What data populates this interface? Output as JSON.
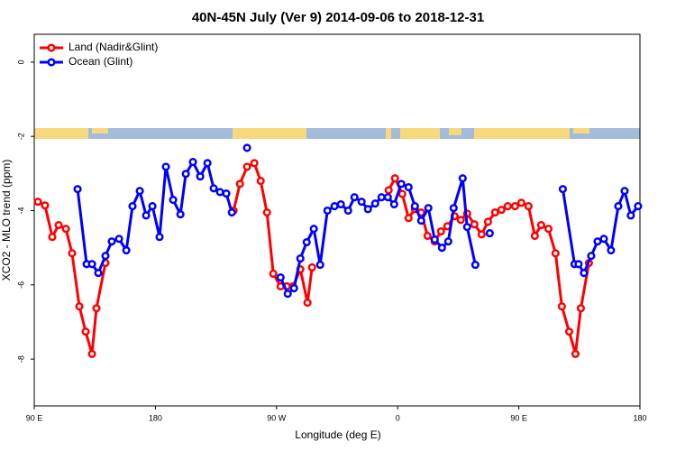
{
  "chart_data": {
    "type": "line",
    "title": "40N-45N July (Ver 9)   2014-09-06 to 2018-12-31",
    "x_label": "Longitude (deg E)",
    "y_label": "XCO2 - MLO trend (ppm)",
    "xlim": [
      90,
      540
    ],
    "xticks": [
      {
        "value": 90,
        "label": "90 E"
      },
      {
        "value": 180,
        "label": "180"
      },
      {
        "value": 270,
        "label": "90 W"
      },
      {
        "value": 360,
        "label": "0"
      },
      {
        "value": 450,
        "label": "90 E"
      },
      {
        "value": 540,
        "label": "180"
      }
    ],
    "ylim": [
      -9.26,
      0.75
    ],
    "yticks": [
      -8,
      -6,
      -4,
      -2,
      0
    ],
    "legend": "top-left",
    "series": [
      {
        "name": "Land (Nadir&Glint)",
        "color": "#ff0000",
        "x": [
          92.7,
          98,
          103.4,
          108.1,
          113.5,
          118.1,
          123.5,
          128.2,
          132.9,
          136.2,
          142.9,
          null,
          238.1,
          242.8,
          248.1,
          253.5,
          258.2,
          262.9,
          267.6,
          273,
          277.6,
          282.3,
          287.7,
          293,
          296.4,
          null,
          353.3,
          358,
          363.4,
          368.1,
          372.8,
          377.5,
          382.2,
          387.5,
          392.2,
          396.9,
          402.3,
          406.9,
          411.6,
          417,
          422.4,
          427.1,
          432.4,
          437.1,
          441.8,
          447.2,
          451.9,
          457.2,
          461.9,
          466.6,
          472,
          477.3,
          482,
          487.4,
          492.1,
          496.1,
          502.1
        ],
        "values": [
          -3.76,
          -3.86,
          -4.71,
          -4.39,
          -4.49,
          -5.15,
          -6.58,
          -7.26,
          -7.86,
          -6.63,
          -5.41,
          null,
          -4.0,
          -3.28,
          -2.82,
          -2.72,
          -3.2,
          -4.05,
          -5.7,
          -6.04,
          -6.04,
          -6.04,
          -5.58,
          -6.48,
          -5.53,
          null,
          -3.45,
          -3.13,
          -3.55,
          -4.2,
          -3.96,
          -4.05,
          -4.68,
          -4.83,
          -4.56,
          -4.42,
          -4.15,
          -4.25,
          -4.08,
          -4.37,
          -4.64,
          -4.3,
          -4.05,
          -3.98,
          -3.88,
          -3.88,
          -3.79,
          -3.88,
          -4.68,
          -4.39,
          -4.49,
          -5.15,
          -6.58,
          -7.26,
          -7.86,
          -6.63,
          -5.41
        ]
      },
      {
        "name": "Ocean (Glint)",
        "color": "#0000ff",
        "x": [
          122.2,
          128.9,
          132.9,
          137.6,
          142.9,
          147.6,
          153,
          158.4,
          163,
          168.4,
          173.1,
          177.8,
          183.1,
          187.8,
          193.2,
          198.6,
          202.6,
          207.9,
          213.3,
          218.7,
          223.3,
          228,
          232.7,
          236.8,
          null,
          248.1,
          null,
          273,
          278.3,
          283,
          287.7,
          292.4,
          297.7,
          302.4,
          307.8,
          313.1,
          317.8,
          323.2,
          327.9,
          333.2,
          337.9,
          343.3,
          348,
          352.7,
          357.4,
          362.7,
          368.1,
          372.8,
          377.5,
          382.8,
          387.5,
          392.9,
          397.6,
          401.6,
          408.3,
          411.6,
          417.7,
          null,
          428.4,
          null,
          482.7,
          491.4,
          494.4,
          498.4,
          503.8,
          508.5,
          513.2,
          518.5,
          523.9,
          528.6,
          533.2,
          538.6
        ],
        "values": [
          -3.42,
          -5.44,
          -5.44,
          -5.68,
          -5.22,
          -4.83,
          -4.76,
          -5.07,
          -3.88,
          -3.47,
          -4.13,
          -3.88,
          -4.71,
          -2.82,
          -3.71,
          -4.1,
          -3.01,
          -2.69,
          -3.08,
          -2.72,
          -3.4,
          -3.5,
          -3.54,
          -4.05,
          null,
          -2.31,
          null,
          -5.8,
          -6.24,
          -6.09,
          -5.29,
          -4.85,
          -4.49,
          -5.46,
          -4.0,
          -3.88,
          -3.83,
          -4.0,
          -3.64,
          -3.76,
          -3.96,
          -3.81,
          -3.64,
          -3.64,
          -3.83,
          -3.28,
          -3.37,
          -3.88,
          -4.27,
          -3.93,
          -4.78,
          -5.0,
          -4.83,
          -3.93,
          -3.13,
          -4.44,
          -5.46,
          null,
          -4.61,
          null,
          -3.42,
          -5.44,
          -5.44,
          -5.68,
          -5.22,
          -4.83,
          -4.76,
          -5.07,
          -3.88,
          -3.47,
          -4.13,
          -3.88
        ]
      }
    ]
  }
}
